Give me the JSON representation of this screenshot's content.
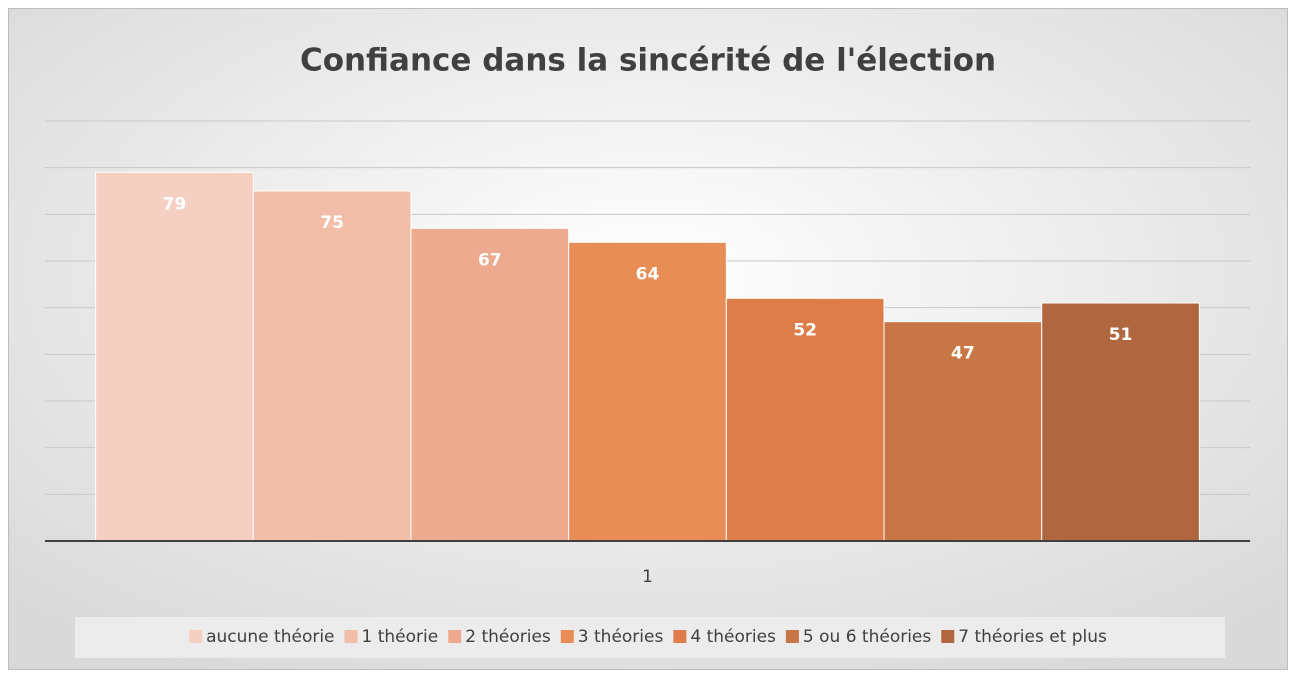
{
  "chart_data": {
    "type": "bar",
    "title": "Confiance dans la sincérité de l'élection",
    "categories": [
      "1"
    ],
    "series": [
      {
        "name": "aucune théorie",
        "color": "#f5cfc2",
        "values": [
          79
        ]
      },
      {
        "name": "1 théorie",
        "color": "#f2bda9",
        "values": [
          75
        ]
      },
      {
        "name": "2 théories",
        "color": "#eeaa8f",
        "values": [
          67
        ]
      },
      {
        "name": "3 théories",
        "color": "#e98d57",
        "values": [
          64
        ]
      },
      {
        "name": "4 théories",
        "color": "#dd7e4a",
        "values": [
          52
        ]
      },
      {
        "name": "5 ou 6 théories",
        "color": "#c97647",
        "values": [
          47
        ]
      },
      {
        "name": "7 théories et plus",
        "color": "#b0663f",
        "values": [
          51
        ]
      }
    ],
    "ylim": [
      0,
      90
    ],
    "yticks": [
      0,
      10,
      20,
      30,
      40,
      50,
      60,
      70,
      80,
      90
    ],
    "grid": true,
    "legend": "bottom"
  }
}
